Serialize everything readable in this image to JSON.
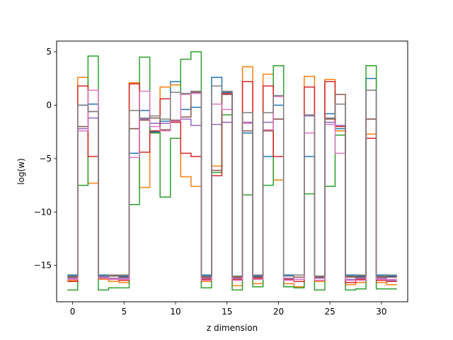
{
  "chart_data": {
    "type": "line",
    "drawstyle": "steps-mid",
    "title": "",
    "xlabel": "z dimension",
    "ylabel": "log(w)",
    "xlim": [
      -1.55,
      32.55
    ],
    "ylim": [
      -18.4,
      6.0
    ],
    "xticks": [
      0,
      5,
      10,
      15,
      20,
      25,
      30
    ],
    "yticks": [
      5,
      0,
      -5,
      -10,
      -15
    ],
    "xtick_labels": [
      "0",
      "5",
      "10",
      "15",
      "20",
      "25",
      "30"
    ],
    "ytick_labels": [
      "5",
      "0",
      "−5",
      "−10",
      "−15"
    ],
    "grid": false,
    "x": [
      0,
      1,
      2,
      3,
      4,
      5,
      6,
      7,
      8,
      9,
      10,
      11,
      12,
      13,
      14,
      15,
      16,
      17,
      18,
      19,
      20,
      21,
      22,
      23,
      24,
      25,
      26,
      27,
      28,
      29,
      30,
      31
    ],
    "series": [
      {
        "color": "#1f77b4",
        "values": [
          -15.9,
          0.0,
          0.1,
          -15.9,
          -16.0,
          -16.0,
          -4.5,
          -0.5,
          -2.5,
          -1.5,
          2.2,
          -0.4,
          -0.2,
          -15.9,
          2.6,
          1.2,
          -16.1,
          -2.6,
          -16.0,
          -4.8,
          0.0,
          -15.9,
          -15.9,
          -4.8,
          -16.0,
          -0.8,
          -2.2,
          -15.9,
          -16.0,
          2.5,
          -15.9,
          -16.0
        ]
      },
      {
        "color": "#ff7f0e",
        "values": [
          -16.4,
          2.6,
          -7.3,
          -16.3,
          -16.5,
          -16.6,
          2.1,
          -7.7,
          -2.6,
          1.7,
          1.9,
          -6.7,
          -7.6,
          -16.5,
          -5.7,
          -1.6,
          -16.9,
          3.6,
          -16.7,
          2.9,
          -7.0,
          -16.7,
          -17.0,
          2.7,
          -16.5,
          2.4,
          -2.4,
          -16.8,
          -16.6,
          -2.7,
          -16.6,
          -16.8
        ]
      },
      {
        "color": "#2ca02c",
        "values": [
          -17.3,
          -7.5,
          4.6,
          -17.3,
          -17.1,
          -17.1,
          -9.3,
          4.5,
          -2.6,
          -8.6,
          -3.1,
          4.3,
          5.0,
          -17.1,
          -6.3,
          -0.9,
          -17.3,
          -8.4,
          -17.0,
          -7.5,
          3.7,
          -17.0,
          -17.1,
          -8.3,
          -17.3,
          -7.6,
          -2.8,
          -17.3,
          -17.2,
          3.7,
          -17.2,
          -17.2
        ]
      },
      {
        "color": "#d62728",
        "values": [
          -16.5,
          1.8,
          -4.8,
          -16.2,
          -16.3,
          -16.4,
          2.0,
          -4.4,
          -2.4,
          0.6,
          -1.6,
          -4.5,
          -4.8,
          -16.3,
          -6.6,
          1.1,
          -16.3,
          2.2,
          -16.2,
          1.8,
          -4.8,
          -16.3,
          -16.5,
          1.7,
          -16.4,
          2.2,
          -2.0,
          -16.6,
          -16.3,
          -3.1,
          -16.4,
          -16.5
        ]
      },
      {
        "color": "#9467bd",
        "values": [
          -16.2,
          -2.2,
          -1.2,
          -16.1,
          -16.2,
          -16.2,
          -2.2,
          -1.3,
          -1.7,
          -1.7,
          -1.5,
          -1.3,
          -1.9,
          -16.2,
          -1.8,
          -1.6,
          -16.2,
          -1.6,
          -16.3,
          -1.6,
          -1.3,
          -16.2,
          -16.3,
          -1.0,
          -16.2,
          -1.6,
          -1.9,
          -16.3,
          -16.2,
          -1.3,
          -16.2,
          -16.4
        ]
      },
      {
        "color": "#8c564b",
        "values": [
          -16.1,
          -2.0,
          -0.6,
          -16.0,
          -16.0,
          -16.1,
          -2.2,
          -1.4,
          -1.2,
          -2.3,
          -1.4,
          -1.1,
          1.2,
          -16.1,
          -6.1,
          1.0,
          -16.1,
          -2.4,
          -16.1,
          -2.4,
          -1.3,
          -16.0,
          -16.1,
          -2.6,
          -16.1,
          -1.3,
          1.0,
          -16.1,
          -16.1,
          -1.3,
          -16.1,
          -16.1
        ]
      },
      {
        "color": "#e377c2",
        "values": [
          -16.3,
          -2.4,
          1.4,
          -16.2,
          -16.3,
          -16.3,
          -4.9,
          1.3,
          -2.0,
          -2.4,
          -1.5,
          1.0,
          1.1,
          -16.4,
          0.1,
          -0.4,
          -16.4,
          -1.7,
          -16.3,
          -2.3,
          0.8,
          -16.4,
          -16.3,
          -2.6,
          -16.4,
          -1.8,
          -4.5,
          -16.4,
          -16.4,
          1.4,
          -16.3,
          -16.3
        ]
      },
      {
        "color": "#7f7f7f",
        "values": [
          -16.0,
          0.0,
          -0.6,
          -16.0,
          -15.9,
          -15.9,
          -0.5,
          -1.2,
          -1.0,
          -1.3,
          1.2,
          1.1,
          1.3,
          -16.0,
          1.8,
          1.3,
          -16.0,
          -0.7,
          -15.9,
          -0.7,
          0.9,
          -16.0,
          -15.9,
          -0.9,
          -16.0,
          -1.2,
          0.1,
          -16.0,
          -15.9,
          1.4,
          -16.0,
          -15.9
        ]
      }
    ]
  }
}
